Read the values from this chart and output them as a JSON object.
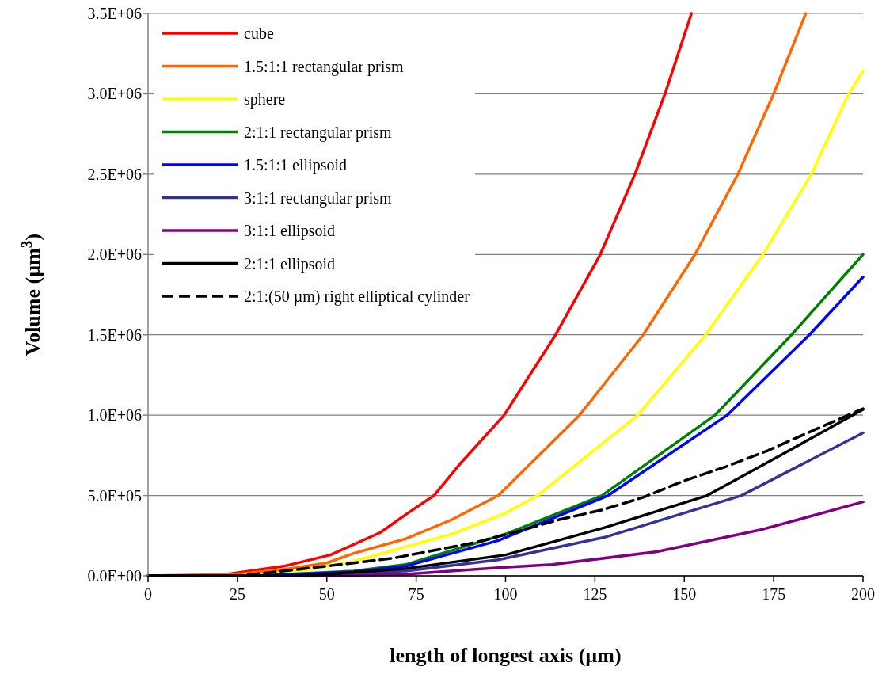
{
  "chart_data": {
    "type": "line",
    "xlabel": "length of longest axis (µm)",
    "ylabel": "Volume (µm$^{3}$)",
    "xlim": [
      0,
      200
    ],
    "xticks": [
      0,
      25,
      50,
      75,
      100,
      125,
      150,
      175,
      200
    ],
    "ylim": [
      0,
      3500000
    ],
    "yticks": [
      {
        "value": 0,
        "label": "0.0E+00"
      },
      {
        "value": 500000,
        "label": "5.0E+05"
      },
      {
        "value": 1000000,
        "label": "1.0E+06"
      },
      {
        "value": 1500000,
        "label": "1.5E+06"
      },
      {
        "value": 2000000,
        "label": "2.0E+06"
      },
      {
        "value": 2500000,
        "label": "2.5E+06"
      },
      {
        "value": 3000000,
        "label": "3.0E+06"
      },
      {
        "value": 3500000,
        "label": "3.5E+06"
      }
    ],
    "grid": "y",
    "legend": "top left",
    "marker": "none",
    "line_style": "solid",
    "series": [
      {
        "name": "cube",
        "color": "#ff0000",
        "x": [
          0,
          19,
          38,
          51,
          65,
          72,
          80,
          87,
          99.6,
          114,
          126.5,
          136.2,
          144.6,
          152
        ],
        "values": [
          0,
          0,
          60000,
          130000,
          270000,
          380000,
          500000,
          690000,
          1000000,
          1500000,
          2000000,
          2500000,
          3000000,
          3500000
        ]
      },
      {
        "name": "1.5:1:1 rectangular prism",
        "color": "#ff6600",
        "x": [
          0,
          25,
          38,
          50,
          57.5,
          72,
          85,
          98,
          120.7,
          138.5,
          153,
          165,
          175,
          184
        ],
        "values": [
          0,
          10000,
          40000,
          80000,
          140000,
          230000,
          350000,
          500000,
          1000000,
          1500000,
          2000000,
          2500000,
          3000000,
          3500000
        ]
      },
      {
        "name": "sphere",
        "color": "#ffff00",
        "x": [
          0,
          25,
          42.7,
          57.5,
          72,
          85,
          100,
          109,
          137,
          156,
          172,
          185.6,
          196,
          200
        ],
        "values": [
          0,
          0,
          30000,
          90000,
          180000,
          260000,
          390000,
          500000,
          1000000,
          1500000,
          2000000,
          2500000,
          3000000,
          3140000
        ]
      },
      {
        "name": "2:1:1 rectangular prism",
        "color": "#008000",
        "x": [
          0,
          30,
          57.5,
          72,
          100,
          127,
          158.6,
          180,
          200
        ],
        "values": [
          0,
          0,
          30000,
          70000,
          260000,
          500000,
          1000000,
          1500000,
          2000000
        ]
      },
      {
        "name": "1.5:1:1 ellipsoid",
        "color": "#0000ff",
        "x": [
          0,
          30,
          57.5,
          72,
          98,
          128.7,
          162,
          185,
          200
        ],
        "values": [
          0,
          0,
          25000,
          60000,
          220000,
          500000,
          1000000,
          1500000,
          1860000
        ]
      },
      {
        "name": "3:1:1 rectangular prism",
        "color": "#333399",
        "x": [
          0,
          40,
          72,
          98,
          127.7,
          166,
          200
        ],
        "values": [
          0,
          0,
          30000,
          100000,
          240000,
          500000,
          890000
        ]
      },
      {
        "name": "3:1:1 ellipsoid",
        "color": "#800080",
        "x": [
          0,
          50,
          72,
          98,
          113,
          142.4,
          172,
          200
        ],
        "values": [
          0,
          0,
          10000,
          50000,
          70000,
          150000,
          290000,
          460000
        ]
      },
      {
        "name": "2:1:1 ellipsoid",
        "color": "#000000",
        "x": [
          0,
          40,
          50,
          72,
          100,
          127.7,
          156.4,
          172,
          200
        ],
        "values": [
          0,
          0,
          10000,
          45000,
          130000,
          300000,
          500000,
          690000,
          1035000
        ]
      },
      {
        "name": "2:1:(50 µm) right elliptical cylinder",
        "color": "#000000",
        "line_style": "dashed",
        "x": [
          0,
          25,
          34,
          45.7,
          57.5,
          68.6,
          80.4,
          92,
          104,
          115,
          127,
          138.7,
          149.8,
          161.7,
          173.4,
          184.5,
          200
        ],
        "values": [
          0,
          0,
          20000,
          50000,
          80000,
          110000,
          160000,
          210000,
          280000,
          350000,
          410000,
          490000,
          590000,
          680000,
          780000,
          890000,
          1040000
        ]
      }
    ]
  }
}
